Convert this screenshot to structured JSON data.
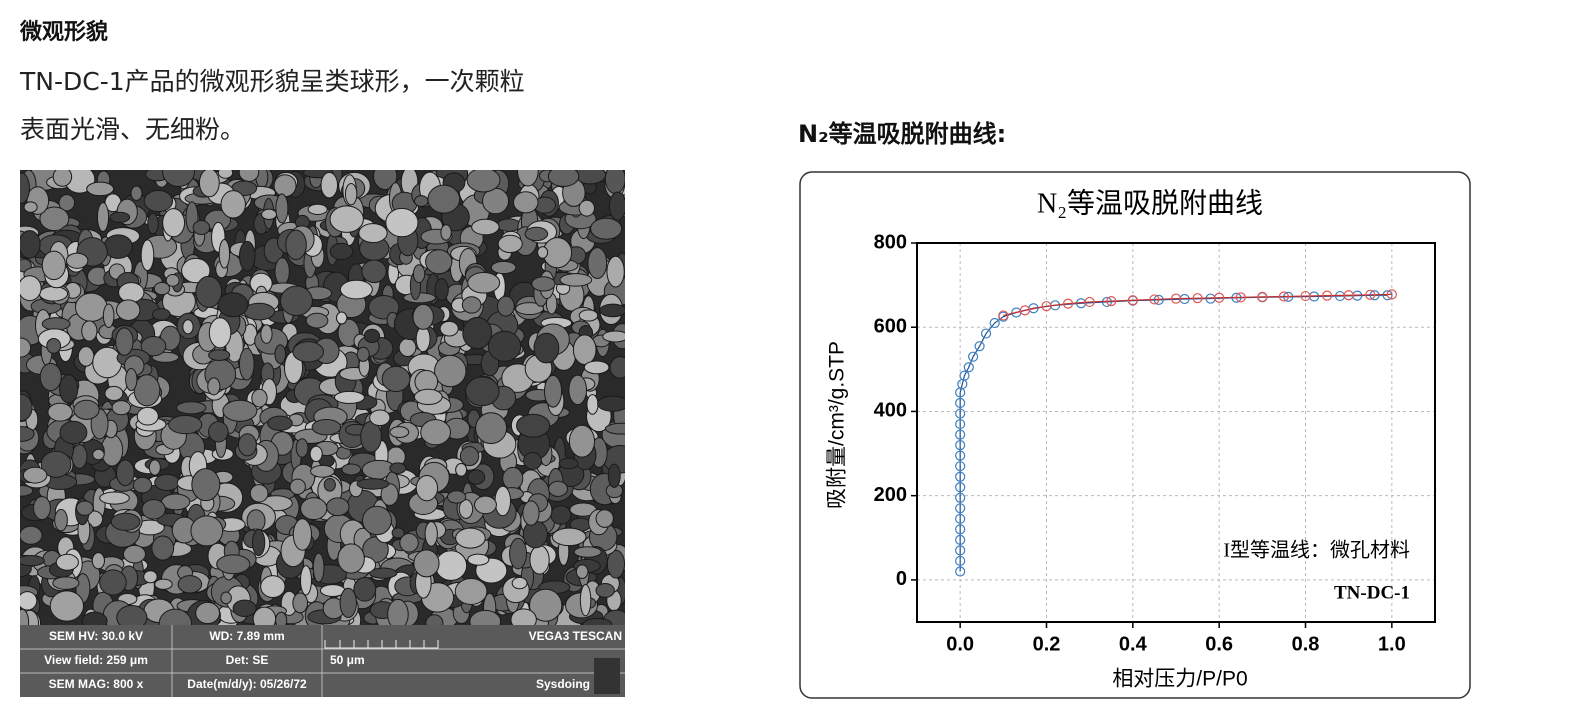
{
  "left": {
    "heading": "微观形貌",
    "lines": [
      "TN-DC-1产品的微观形貌呈类球形，一次颗粒",
      "表面光滑、无细粉。"
    ],
    "sem_info": [
      [
        "SEM HV: 30.0 kV",
        "WD: 7.89 mm",
        "VEGA3 TESCAN"
      ],
      [
        "View field: 259 μm",
        "Det: SE",
        "50 μm"
      ],
      [
        "SEM MAG: 800 x",
        "Date(m/d/y): 05/26/72",
        "Sysdoing"
      ]
    ]
  },
  "right": {
    "heading": "N₂等温吸脱附曲线:"
  },
  "chart_data": {
    "type": "scatter",
    "title": "N₂等温吸脱附曲线",
    "x_label": "相对压力/P/P0",
    "y_label": "吸附量/cm³/g.STP",
    "annotations": [
      "I型等温线：微孔材料",
      "TN-DC-1"
    ],
    "xlim": [
      -0.1,
      1.1
    ],
    "xticks": [
      {
        "value": 0,
        "label": "0.0"
      },
      0.2,
      0.4,
      0.6,
      0.8,
      {
        "value": 1,
        "label": "1.0"
      }
    ],
    "ylim": [
      -100,
      800
    ],
    "yticks": [
      0,
      200,
      400,
      600,
      800
    ],
    "grid": true,
    "series": [
      {
        "color": "#3c7fc0",
        "x": [
          0,
          0,
          0,
          0,
          0,
          0,
          0,
          0,
          0,
          0,
          0,
          0,
          0,
          0,
          0,
          0,
          0,
          0,
          0.005,
          0.01,
          0.02,
          0.03,
          0.045,
          0.06,
          0.08,
          0.1,
          0.13,
          0.17,
          0.22,
          0.28,
          0.34,
          0.4,
          0.46,
          0.52,
          0.58,
          0.64,
          0.7,
          0.76,
          0.82,
          0.88,
          0.92,
          0.96,
          0.99
        ],
        "values": [
          20,
          45,
          70,
          95,
          120,
          145,
          170,
          195,
          220,
          245,
          270,
          295,
          320,
          345,
          370,
          395,
          420,
          445,
          465,
          485,
          505,
          530,
          555,
          585,
          610,
          625,
          635,
          645,
          652,
          657,
          660,
          663,
          665,
          667,
          668,
          670,
          671,
          672,
          673,
          674,
          675,
          676,
          676
        ]
      },
      {
        "color": "#e05555",
        "x": [
          0.1,
          0.15,
          0.2,
          0.25,
          0.3,
          0.35,
          0.4,
          0.45,
          0.5,
          0.55,
          0.6,
          0.65,
          0.7,
          0.75,
          0.8,
          0.85,
          0.9,
          0.95,
          1.0
        ],
        "values": [
          628,
          640,
          650,
          656,
          660,
          662,
          664,
          666,
          668,
          669,
          670,
          671,
          672,
          673,
          674,
          675,
          676,
          677,
          678
        ]
      }
    ]
  }
}
